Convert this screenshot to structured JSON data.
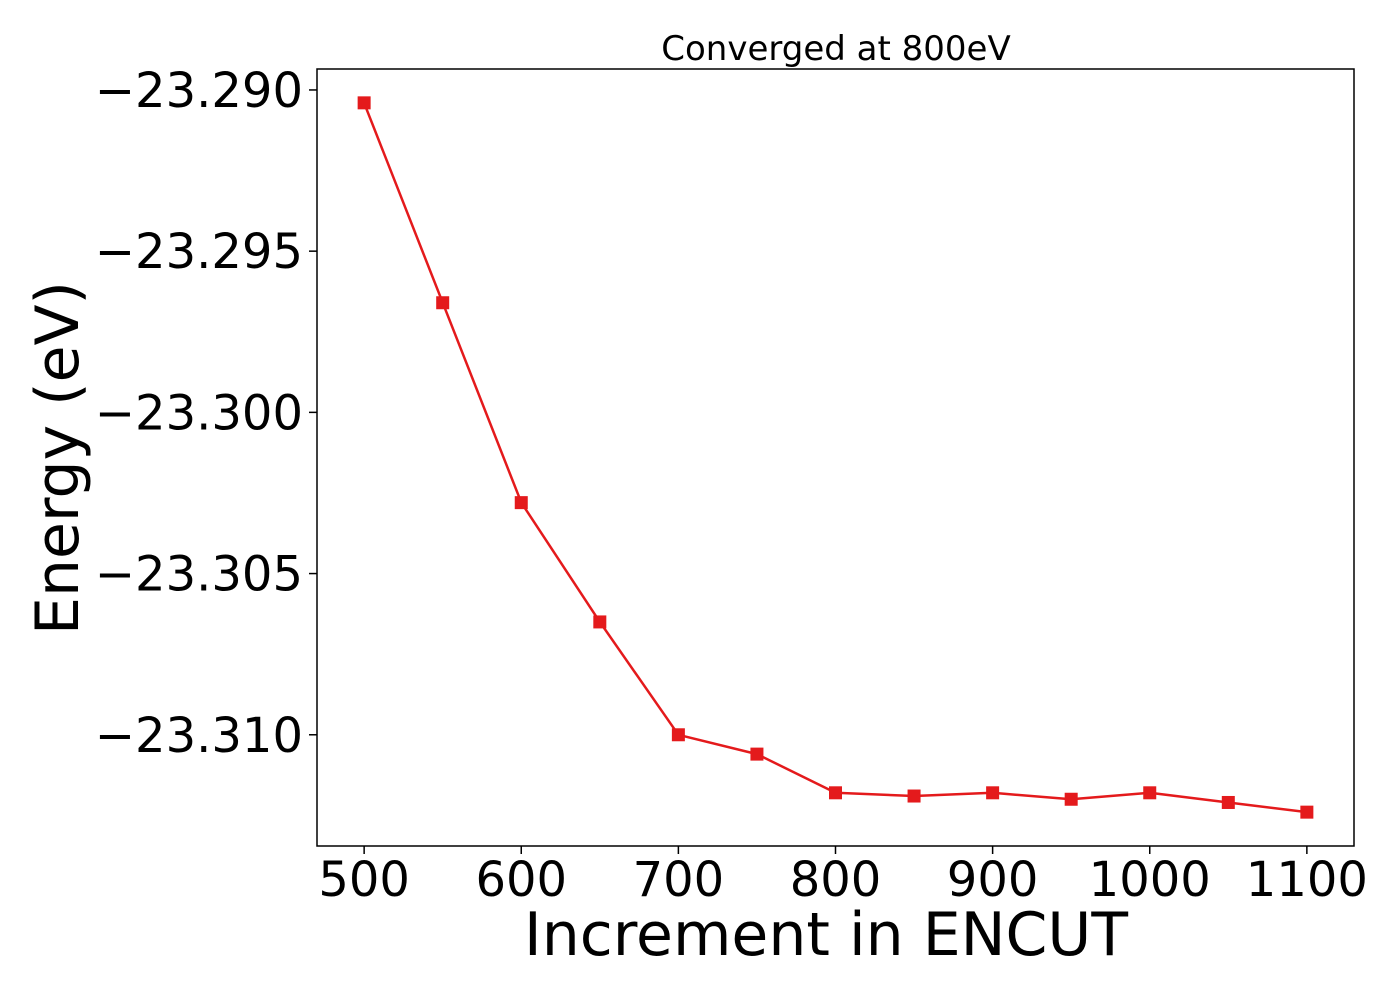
{
  "chart_data": {
    "type": "line",
    "title": "Converged at 800eV",
    "xlabel": "Increment in ENCUT",
    "ylabel": "Energy (eV)",
    "x": [
      500,
      550,
      600,
      650,
      700,
      750,
      800,
      850,
      900,
      950,
      1000,
      1050,
      1100
    ],
    "series": [
      {
        "values": [
          -23.2904,
          -23.2966,
          -23.3028,
          -23.3065,
          -23.31,
          -23.3106,
          -23.3118,
          -23.3119,
          -23.3118,
          -23.312,
          -23.3118,
          -23.3121,
          -23.3124
        ],
        "color": "#e41a1c",
        "marker": "square"
      }
    ],
    "xlim": [
      470,
      1130
    ],
    "ylim": [
      -23.31345,
      -23.28935
    ],
    "xticks": [
      500,
      600,
      700,
      800,
      900,
      1000,
      1100
    ],
    "xtick_labels": [
      "500",
      "600",
      "700",
      "800",
      "900",
      "1000",
      "1100"
    ],
    "yticks": [
      -23.29,
      -23.295,
      -23.3,
      -23.305,
      -23.31
    ],
    "ytick_labels": [
      "−23.290",
      "−23.295",
      "−23.300",
      "−23.305",
      "−23.310"
    ],
    "grid": false
  }
}
